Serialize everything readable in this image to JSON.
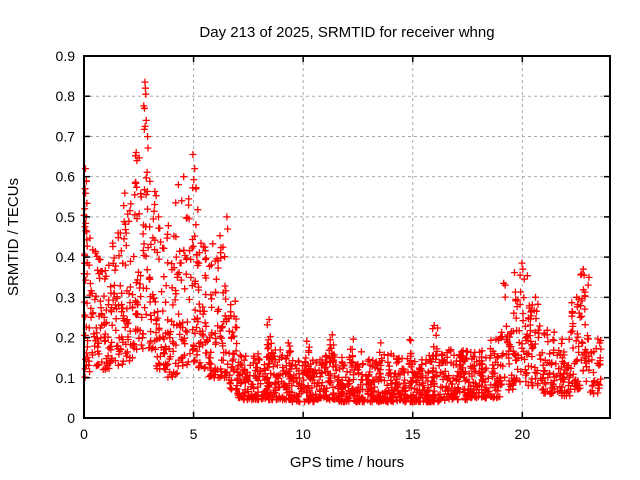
{
  "chart_data": {
    "type": "scatter",
    "title": "Day 213 of 2025, SRMTID for receiver whng",
    "xlabel": "GPS time / hours",
    "ylabel": "SRMTID / TECUs",
    "xlim": [
      0,
      24
    ],
    "ylim": [
      0,
      0.9
    ],
    "xticks": [
      0,
      5,
      10,
      15,
      20
    ],
    "xtick_labels": [
      "0",
      "5",
      "10",
      "15",
      "20"
    ],
    "yticks": [
      0,
      0.1,
      0.2,
      0.3,
      0.4,
      0.5,
      0.6,
      0.7,
      0.8,
      0.9
    ],
    "ytick_labels": [
      "0",
      "0.1",
      "0.2",
      "0.3",
      "0.4",
      "0.5",
      "0.6",
      "0.7",
      "0.8",
      "0.9"
    ],
    "grid": true,
    "legend": "none",
    "marker": "plus",
    "marker_size": 7,
    "marker_color": "#ff0000",
    "grid_color": "#aaaaaa",
    "axis_color": "#000000",
    "background_color": "#ffffff",
    "series_name": "SRMTID for receiver whng",
    "peak_points": [
      [
        2.78,
        0.835
      ],
      [
        2.8,
        0.82
      ],
      [
        2.82,
        0.805
      ],
      [
        2.76,
        0.77
      ],
      [
        2.84,
        0.74
      ],
      [
        2.79,
        0.725
      ],
      [
        2.38,
        0.66
      ],
      [
        2.42,
        0.64
      ],
      [
        4.97,
        0.655
      ],
      [
        5.05,
        0.62
      ],
      [
        4.55,
        0.6
      ],
      [
        0.07,
        0.62
      ],
      [
        0.05,
        0.57
      ],
      [
        0.03,
        0.52
      ],
      [
        0.1,
        0.5
      ],
      [
        6.52,
        0.5
      ],
      [
        6.55,
        0.47
      ],
      [
        3.4,
        0.5
      ],
      [
        19.15,
        0.335
      ],
      [
        19.98,
        0.385
      ],
      [
        20.02,
        0.37
      ],
      [
        19.9,
        0.355
      ],
      [
        22.78,
        0.37
      ],
      [
        22.82,
        0.355
      ],
      [
        22.48,
        0.3
      ],
      [
        20.6,
        0.3
      ],
      [
        8.45,
        0.245
      ],
      [
        15.98,
        0.23
      ]
    ],
    "density_segments_columns": [
      "x_start",
      "x_end",
      "y_min",
      "y_max",
      "count",
      "bias_exponent"
    ],
    "density_segments": [
      [
        0.0,
        0.15,
        0.33,
        0.6,
        14,
        1.0
      ],
      [
        0.0,
        0.35,
        0.1,
        0.45,
        30,
        1.4
      ],
      [
        0.35,
        0.8,
        0.13,
        0.42,
        40,
        1.6
      ],
      [
        0.8,
        1.3,
        0.12,
        0.38,
        45,
        1.6
      ],
      [
        1.3,
        1.8,
        0.13,
        0.46,
        45,
        1.6
      ],
      [
        1.8,
        2.3,
        0.14,
        0.56,
        45,
        1.6
      ],
      [
        2.3,
        2.7,
        0.17,
        0.67,
        40,
        1.5
      ],
      [
        2.7,
        2.95,
        0.25,
        0.8,
        22,
        1.2
      ],
      [
        2.95,
        3.3,
        0.17,
        0.62,
        35,
        1.5
      ],
      [
        3.3,
        3.8,
        0.12,
        0.5,
        42,
        1.6
      ],
      [
        3.8,
        4.3,
        0.1,
        0.55,
        42,
        1.6
      ],
      [
        4.3,
        4.8,
        0.13,
        0.6,
        40,
        1.5
      ],
      [
        4.8,
        5.2,
        0.14,
        0.62,
        38,
        1.4
      ],
      [
        5.2,
        5.7,
        0.12,
        0.45,
        42,
        1.6
      ],
      [
        5.7,
        6.2,
        0.1,
        0.44,
        42,
        1.6
      ],
      [
        6.2,
        6.6,
        0.1,
        0.48,
        38,
        1.7
      ],
      [
        6.6,
        7.0,
        0.07,
        0.3,
        38,
        1.8
      ],
      [
        7.0,
        7.5,
        0.045,
        0.18,
        45,
        1.8
      ],
      [
        7.5,
        8.5,
        0.045,
        0.16,
        85,
        1.8
      ],
      [
        8.35,
        8.55,
        0.1,
        0.245,
        12,
        1.3
      ],
      [
        8.5,
        9.5,
        0.045,
        0.17,
        85,
        1.8
      ],
      [
        9.3,
        9.5,
        0.09,
        0.2,
        9,
        1.3
      ],
      [
        9.5,
        10.5,
        0.04,
        0.15,
        85,
        1.8
      ],
      [
        10.15,
        10.35,
        0.09,
        0.195,
        8,
        1.3
      ],
      [
        10.5,
        11.5,
        0.045,
        0.17,
        85,
        1.8
      ],
      [
        11.2,
        11.5,
        0.09,
        0.21,
        12,
        1.3
      ],
      [
        11.5,
        12.5,
        0.04,
        0.16,
        85,
        1.8
      ],
      [
        12.15,
        12.4,
        0.09,
        0.2,
        9,
        1.3
      ],
      [
        12.5,
        13.5,
        0.04,
        0.17,
        85,
        1.8
      ],
      [
        13.4,
        13.6,
        0.09,
        0.21,
        9,
        1.3
      ],
      [
        13.5,
        14.5,
        0.04,
        0.16,
        85,
        1.8
      ],
      [
        14.75,
        14.95,
        0.09,
        0.215,
        9,
        1.3
      ],
      [
        14.5,
        15.5,
        0.04,
        0.15,
        85,
        1.8
      ],
      [
        15.5,
        16.5,
        0.04,
        0.16,
        85,
        1.8
      ],
      [
        15.9,
        16.15,
        0.09,
        0.23,
        11,
        1.3
      ],
      [
        16.5,
        17.5,
        0.045,
        0.17,
        85,
        1.8
      ],
      [
        17.1,
        17.3,
        0.09,
        0.2,
        9,
        1.3
      ],
      [
        17.5,
        18.5,
        0.05,
        0.17,
        80,
        1.8
      ],
      [
        18.0,
        18.2,
        0.09,
        0.195,
        8,
        1.3
      ],
      [
        18.5,
        19.0,
        0.05,
        0.2,
        40,
        1.7
      ],
      [
        19.0,
        19.3,
        0.08,
        0.335,
        18,
        1.4
      ],
      [
        19.3,
        19.6,
        0.07,
        0.22,
        25,
        1.6
      ],
      [
        19.6,
        20.25,
        0.09,
        0.375,
        50,
        1.4
      ],
      [
        20.25,
        20.8,
        0.08,
        0.3,
        45,
        1.5
      ],
      [
        20.8,
        21.5,
        0.06,
        0.22,
        50,
        1.7
      ],
      [
        21.5,
        22.2,
        0.055,
        0.2,
        50,
        1.7
      ],
      [
        22.2,
        22.65,
        0.07,
        0.3,
        40,
        1.5
      ],
      [
        22.65,
        23.05,
        0.09,
        0.36,
        35,
        1.4
      ],
      [
        23.05,
        23.6,
        0.06,
        0.2,
        30,
        1.6
      ]
    ],
    "seed": 20250801
  }
}
